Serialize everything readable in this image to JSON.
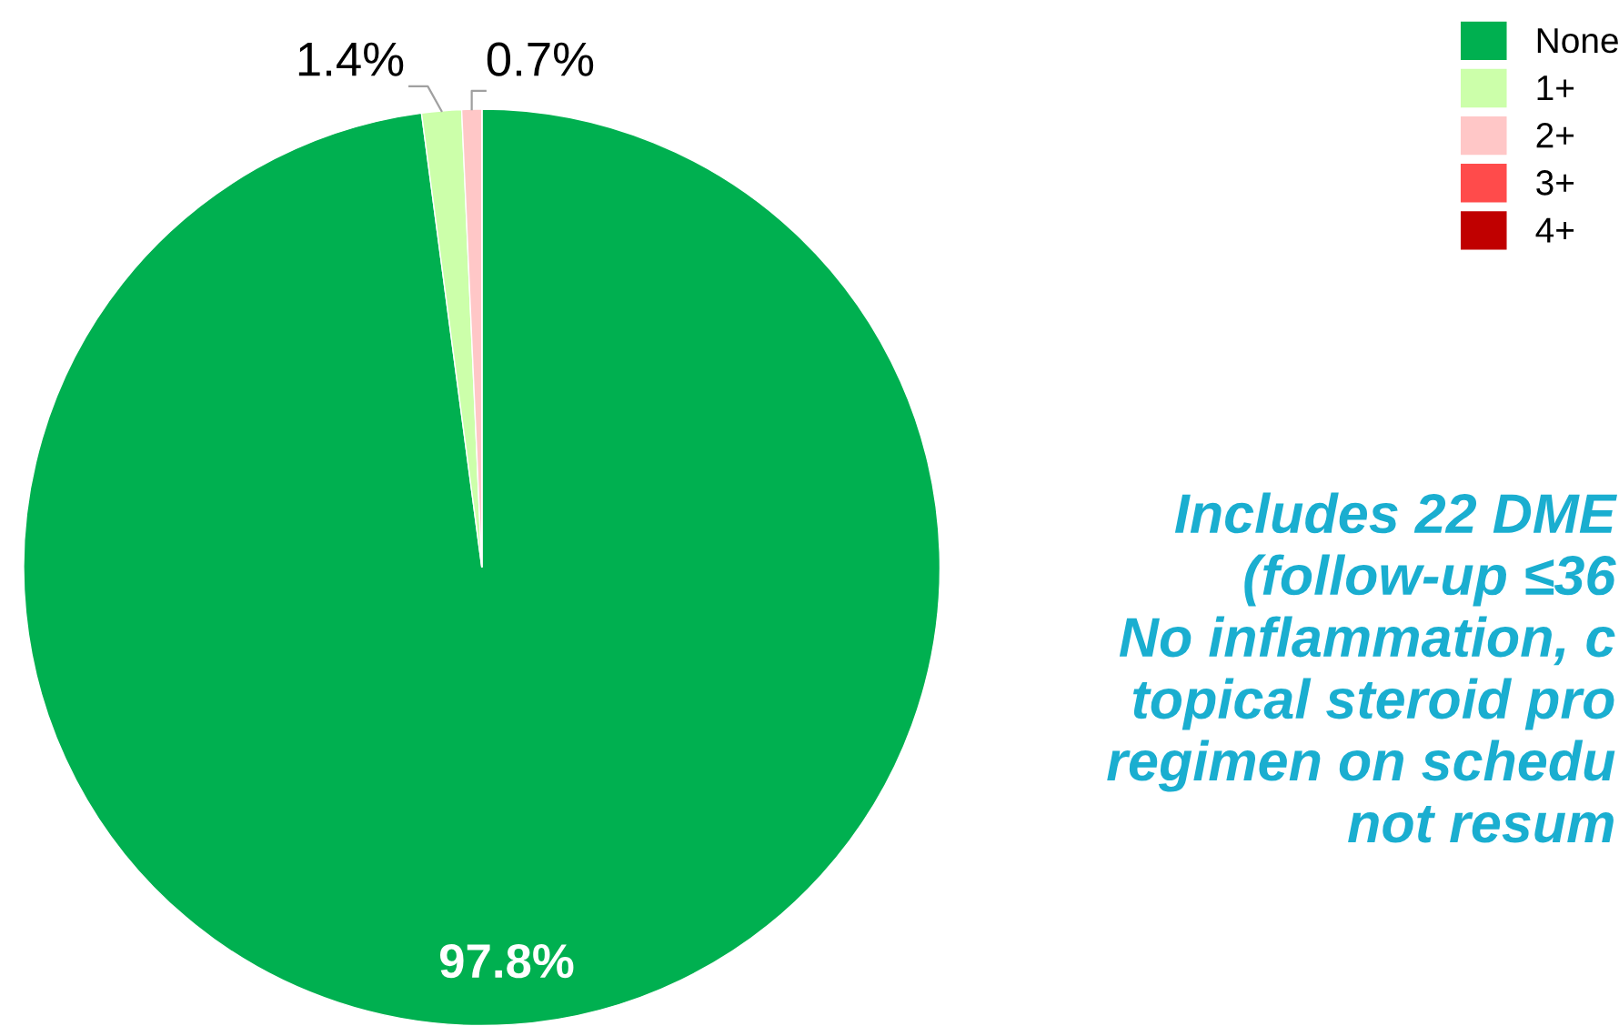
{
  "chart_data": {
    "type": "pie",
    "categories": [
      "None",
      "1+",
      "2+",
      "3+",
      "4+"
    ],
    "values": [
      97.8,
      1.4,
      0.7,
      0,
      0
    ],
    "colors": [
      "#00b050",
      "#ccffaa",
      "#ffc7c7",
      "#ff4b4b",
      "#c00000"
    ],
    "value_labels": [
      "97.8%",
      "1.4%",
      "0.7%",
      null,
      null
    ],
    "legend": "top right",
    "annotations": [
      "Includes 22 DME\n(follow-up ≤36\nNo inflammation, c\ntopical steroid pro\nregimen on schedu\nnot resum"
    ]
  }
}
